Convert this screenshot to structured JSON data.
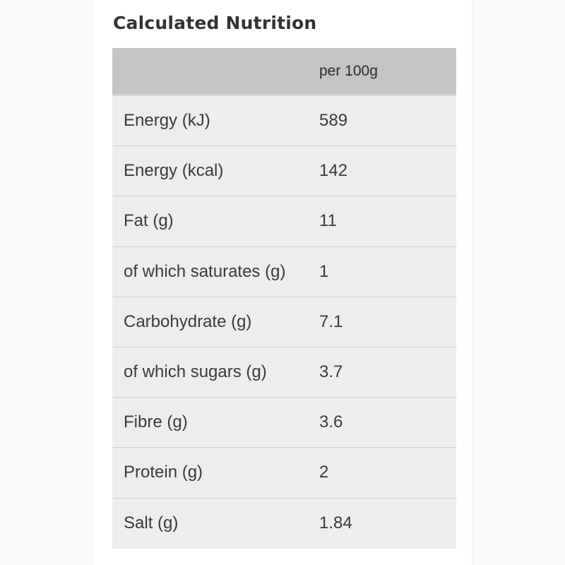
{
  "title": "Calculated Nutrition",
  "table": {
    "header": {
      "label": "",
      "column": "per 100g"
    },
    "rows": [
      {
        "label": "Energy (kJ)",
        "value": "589"
      },
      {
        "label": "Energy (kcal)",
        "value": "142"
      },
      {
        "label": "Fat (g)",
        "value": "11"
      },
      {
        "label": "of which saturates (g)",
        "value": "1"
      },
      {
        "label": "Carbohydrate (g)",
        "value": "7.1"
      },
      {
        "label": "of which sugars (g)",
        "value": "3.7"
      },
      {
        "label": "Fibre (g)",
        "value": "3.6"
      },
      {
        "label": "Protein (g)",
        "value": "2"
      },
      {
        "label": "Salt (g)",
        "value": "1.84"
      }
    ]
  },
  "colors": {
    "header_bg": "#c4c4c4",
    "row_bg": "#ededed",
    "text": "#333333"
  }
}
